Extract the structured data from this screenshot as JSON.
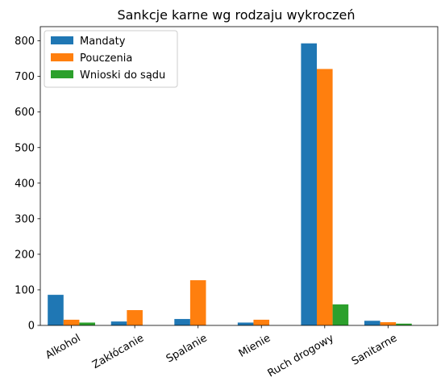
{
  "chart_data": {
    "type": "bar",
    "title": "Sankcje karne wg rodzaju wykroczeń",
    "xlabel": "",
    "ylabel": "",
    "categories": [
      "Alkohol",
      "Zakłócanie",
      "Spalanie",
      "Mienie",
      "Ruch drogowy",
      "Sanitarne"
    ],
    "series": [
      {
        "name": "Mandaty",
        "color": "#1f77b4",
        "values": [
          86,
          11,
          18,
          8,
          793,
          13
        ]
      },
      {
        "name": "Pouczenia",
        "color": "#ff7f0e",
        "values": [
          16,
          43,
          127,
          16,
          721,
          9
        ]
      },
      {
        "name": "Wnioski do sądu",
        "color": "#2ca02c",
        "values": [
          8,
          0,
          0,
          0,
          59,
          5
        ]
      }
    ],
    "ylim": [
      0,
      840
    ],
    "yticks": [
      0,
      100,
      200,
      300,
      400,
      500,
      600,
      700,
      800
    ],
    "legend_position": "top-left",
    "grid": false,
    "xtick_rotation": "30deg"
  }
}
